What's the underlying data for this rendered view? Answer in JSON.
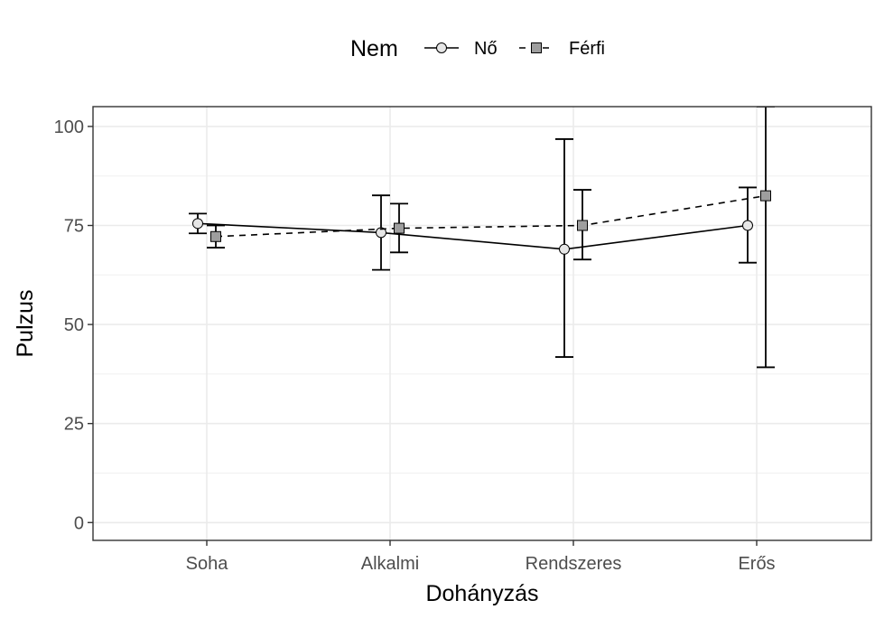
{
  "chart_data": {
    "type": "line",
    "xlabel": "Dohányzás",
    "ylabel": "Pulzus",
    "categories": [
      "Soha",
      "Alkalmi",
      "Rendszeres",
      "Erős"
    ],
    "ylim": [
      -4.5,
      105
    ],
    "yticks": [
      0,
      25,
      50,
      75,
      100
    ],
    "grid": true,
    "legend": {
      "title": "Nem",
      "position": "top",
      "entries": [
        "Nő",
        "Férfi"
      ]
    },
    "series": [
      {
        "name": "Nő",
        "marker": "circle",
        "line": "solid",
        "fill": "#e6e6e6",
        "values": [
          75.5,
          73.2,
          69.0,
          75.0
        ],
        "error_low": [
          73.0,
          63.8,
          41.8,
          65.6
        ],
        "error_high": [
          78.0,
          82.6,
          96.8,
          84.6
        ]
      },
      {
        "name": "Férfi",
        "marker": "square",
        "line": "dashed",
        "fill": "#9e9e9e",
        "values": [
          72.2,
          74.3,
          75.0,
          82.5
        ],
        "error_low": [
          69.4,
          68.2,
          66.4,
          39.2
        ],
        "error_high": [
          75.0,
          80.5,
          84.0,
          105
        ]
      }
    ]
  }
}
